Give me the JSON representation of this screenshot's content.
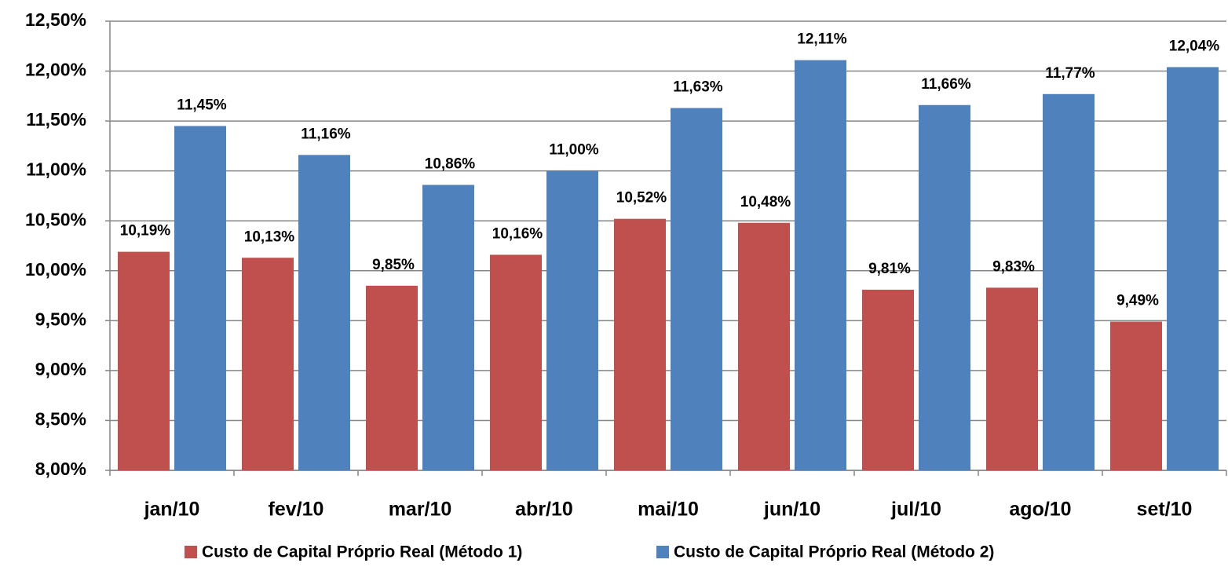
{
  "chart_data": {
    "type": "bar",
    "categories": [
      "jan/10",
      "fev/10",
      "mar/10",
      "abr/10",
      "mai/10",
      "jun/10",
      "jul/10",
      "ago/10",
      "set/10"
    ],
    "series": [
      {
        "name": "Custo de Capital Próprio Real (Método 1)",
        "color": "#c0504d",
        "values": [
          10.19,
          10.13,
          9.85,
          10.16,
          10.52,
          10.48,
          9.81,
          9.83,
          9.49
        ],
        "value_labels": [
          "10,19%",
          "10,13%",
          "9,85%",
          "10,16%",
          "10,52%",
          "10,48%",
          "9,81%",
          "9,83%",
          "9,49%"
        ]
      },
      {
        "name": "Custo de Capital Próprio Real (Método 2)",
        "color": "#4f81bd",
        "values": [
          11.45,
          11.16,
          10.86,
          11.0,
          11.63,
          12.11,
          11.66,
          11.77,
          12.04
        ],
        "value_labels": [
          "11,45%",
          "11,16%",
          "10,86%",
          "11,00%",
          "11,63%",
          "12,11%",
          "11,66%",
          "11,77%",
          "12,04%"
        ]
      }
    ],
    "ylim": [
      8,
      12.5
    ],
    "yticks": [
      {
        "value": 8,
        "label": "8,00%"
      },
      {
        "value": 8.5,
        "label": "8,50%"
      },
      {
        "value": 9,
        "label": "9,00%"
      },
      {
        "value": 9.5,
        "label": "9,50%"
      },
      {
        "value": 10,
        "label": "10,00%"
      },
      {
        "value": 10.5,
        "label": "10,50%"
      },
      {
        "value": 11,
        "label": "11,00%"
      },
      {
        "value": 11.5,
        "label": "11,50%"
      },
      {
        "value": 12,
        "label": "12,00%"
      },
      {
        "value": 12.5,
        "label": "12,50%"
      }
    ],
    "grid": true,
    "legend": "bottom"
  }
}
